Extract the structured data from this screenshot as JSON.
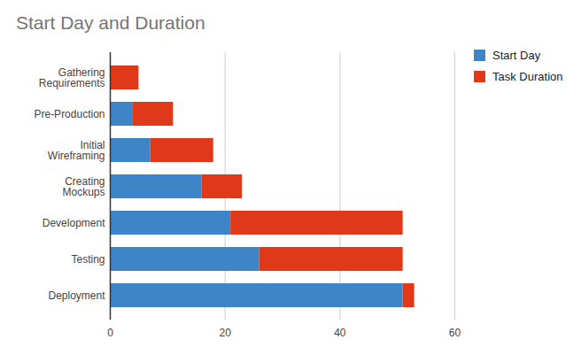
{
  "chart_data": {
    "type": "bar",
    "title": "Start Day and Duration",
    "orientation": "horizontal",
    "stacked": true,
    "categories": [
      "Gathering Requirements",
      "Pre-Production",
      "Initial Wireframing",
      "Creating Mockups",
      "Development",
      "Testing",
      "Deployment"
    ],
    "series": [
      {
        "name": "Start Day",
        "color": "#3d85c6",
        "values": [
          0,
          4,
          7,
          16,
          21,
          26,
          51
        ]
      },
      {
        "name": "Task Duration",
        "color": "#e0391a",
        "values": [
          5,
          7,
          11,
          7,
          30,
          25,
          2
        ]
      }
    ],
    "xlim": [
      0,
      60
    ],
    "xticks": [
      0,
      20,
      40,
      60
    ],
    "grid": true,
    "legend": "right"
  }
}
